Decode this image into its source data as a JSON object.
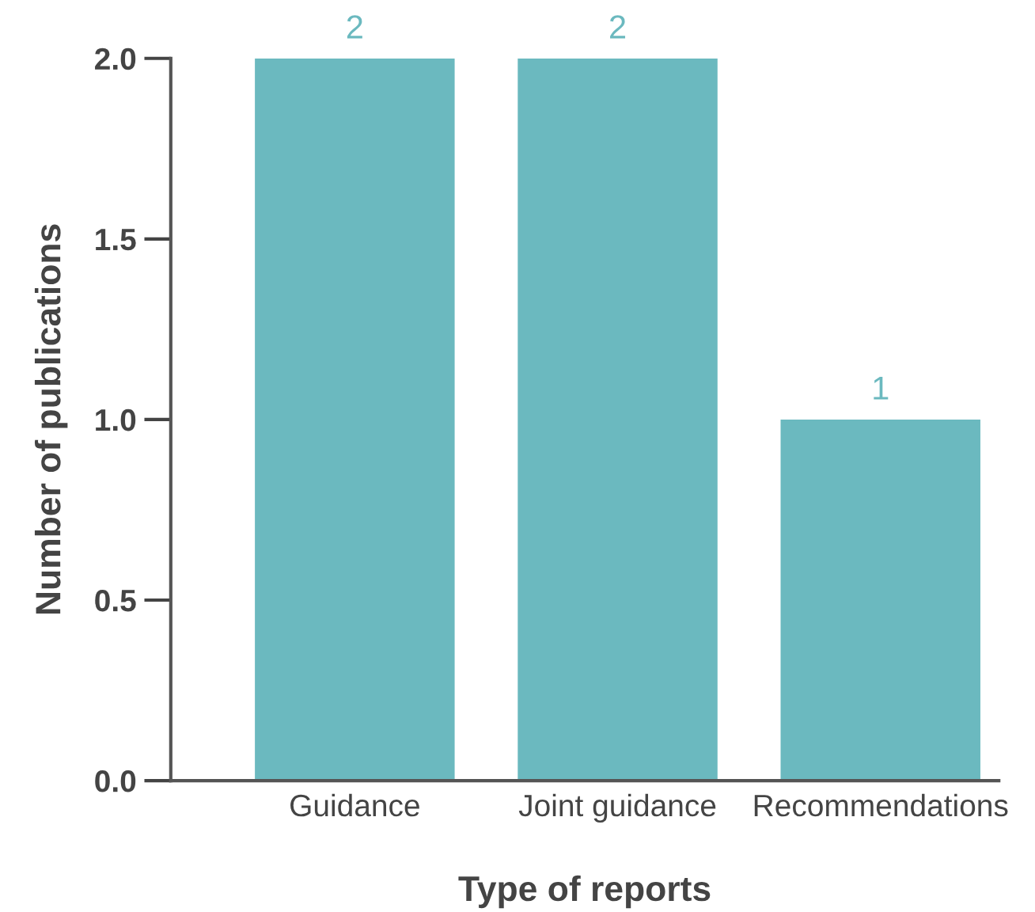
{
  "chart_data": {
    "type": "bar",
    "xlabel": "Type of reports",
    "ylabel": "Number of publications",
    "categories": [
      "Guidance",
      "Joint guidance",
      "Recommendations"
    ],
    "values": [
      2,
      2,
      1
    ],
    "color": "#6bb9bf",
    "ylim": [
      0,
      2.0
    ],
    "yticks": [
      {
        "value": 0,
        "label": "0.0"
      },
      {
        "value": 0.5,
        "label": "0.5"
      },
      {
        "value": 1.0,
        "label": "1.0"
      },
      {
        "value": 1.5,
        "label": "1.5"
      },
      {
        "value": 2.0,
        "label": "2.0"
      }
    ],
    "data_labels": true,
    "grid": false,
    "legend": false
  }
}
